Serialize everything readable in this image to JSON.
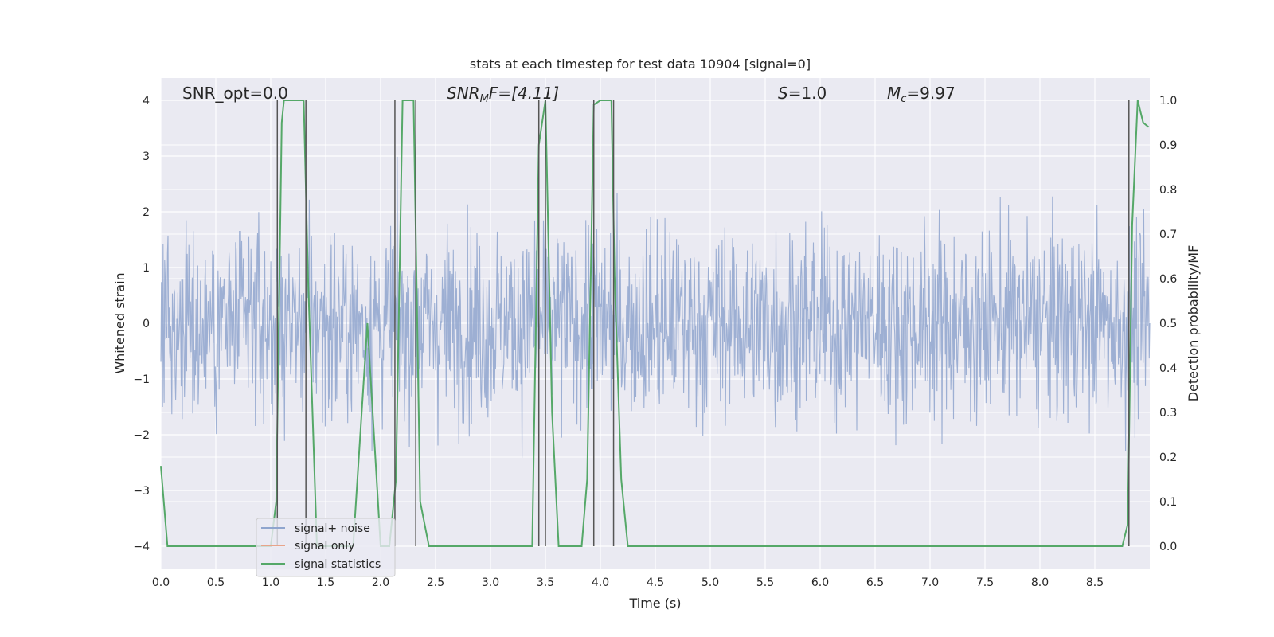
{
  "chart_data": {
    "type": "line",
    "title": "stats at each timestep for test data 10904 [signal=0]",
    "xlabel": "Time (s)",
    "ylabel_left": "Whitened strain",
    "ylabel_right": "Detection probability/MF",
    "xlim": [
      0.0,
      9.0
    ],
    "ylim_left": [
      -4.4,
      4.4
    ],
    "ylim_right": [
      -0.05,
      1.05
    ],
    "x_ticks": [
      "0.0",
      "0.5",
      "1.0",
      "1.5",
      "2.0",
      "2.5",
      "3.0",
      "3.5",
      "4.0",
      "4.5",
      "5.0",
      "5.5",
      "6.0",
      "6.5",
      "7.0",
      "7.5",
      "8.0",
      "8.5"
    ],
    "y_ticks_left": [
      "4",
      "3",
      "2",
      "1",
      "0",
      "−1",
      "−2",
      "−3",
      "−4"
    ],
    "y_ticks_right": [
      "1.0",
      "0.9",
      "0.8",
      "0.7",
      "0.6",
      "0.5",
      "0.4",
      "0.3",
      "0.2",
      "0.1",
      "0.0"
    ],
    "grid": true,
    "legend_position": "lower-left",
    "annotations": {
      "snr_opt": "SNR_opt=0.0",
      "snr_mf_base": "SNR",
      "snr_mf_sub": "M",
      "snr_mf_rest": "F=[4.11]",
      "s_base": "S",
      "s_rest": "=1.0",
      "mc_base": "M",
      "mc_sub": "c",
      "mc_rest": "=9.97"
    },
    "colors": {
      "background": "#eaeaf2",
      "grid": "#ffffff",
      "noise": "#8fa5ce",
      "signal": "#e8a48a",
      "stats": "#55a868",
      "vlines": "#555555"
    },
    "series": [
      {
        "name": "signal+ noise",
        "kind": "noise",
        "approx_std": 1.0,
        "approx_peak": 3.6
      },
      {
        "name": "signal only",
        "values": []
      },
      {
        "name": "signal statistics",
        "axis": "right",
        "x": [
          0.0,
          0.06,
          0.12,
          1.0,
          1.05,
          1.1,
          1.12,
          1.3,
          1.34,
          1.42,
          1.75,
          1.88,
          2.0,
          2.08,
          2.14,
          2.2,
          2.25,
          2.3,
          2.36,
          2.44,
          3.38,
          3.44,
          3.5,
          3.56,
          3.62,
          3.75,
          3.83,
          3.88,
          3.94,
          4.0,
          4.05,
          4.1,
          4.13,
          4.19,
          4.25,
          8.75,
          8.8,
          8.84,
          8.89,
          8.94,
          8.99
        ],
        "y": [
          0.18,
          0.0,
          0.0,
          0.0,
          0.1,
          0.95,
          1.0,
          1.0,
          0.6,
          0.0,
          0.0,
          0.5,
          0.0,
          0.0,
          0.15,
          1.0,
          1.0,
          1.0,
          0.1,
          0.0,
          0.0,
          0.9,
          1.0,
          0.3,
          0.0,
          0.0,
          0.0,
          0.15,
          0.99,
          1.0,
          1.0,
          1.0,
          0.6,
          0.15,
          0.0,
          0.0,
          0.05,
          0.72,
          1.0,
          0.95,
          0.94
        ]
      }
    ],
    "vlines_x": [
      1.06,
      1.32,
      2.13,
      2.32,
      3.44,
      3.5,
      3.94,
      4.12,
      8.81
    ]
  }
}
